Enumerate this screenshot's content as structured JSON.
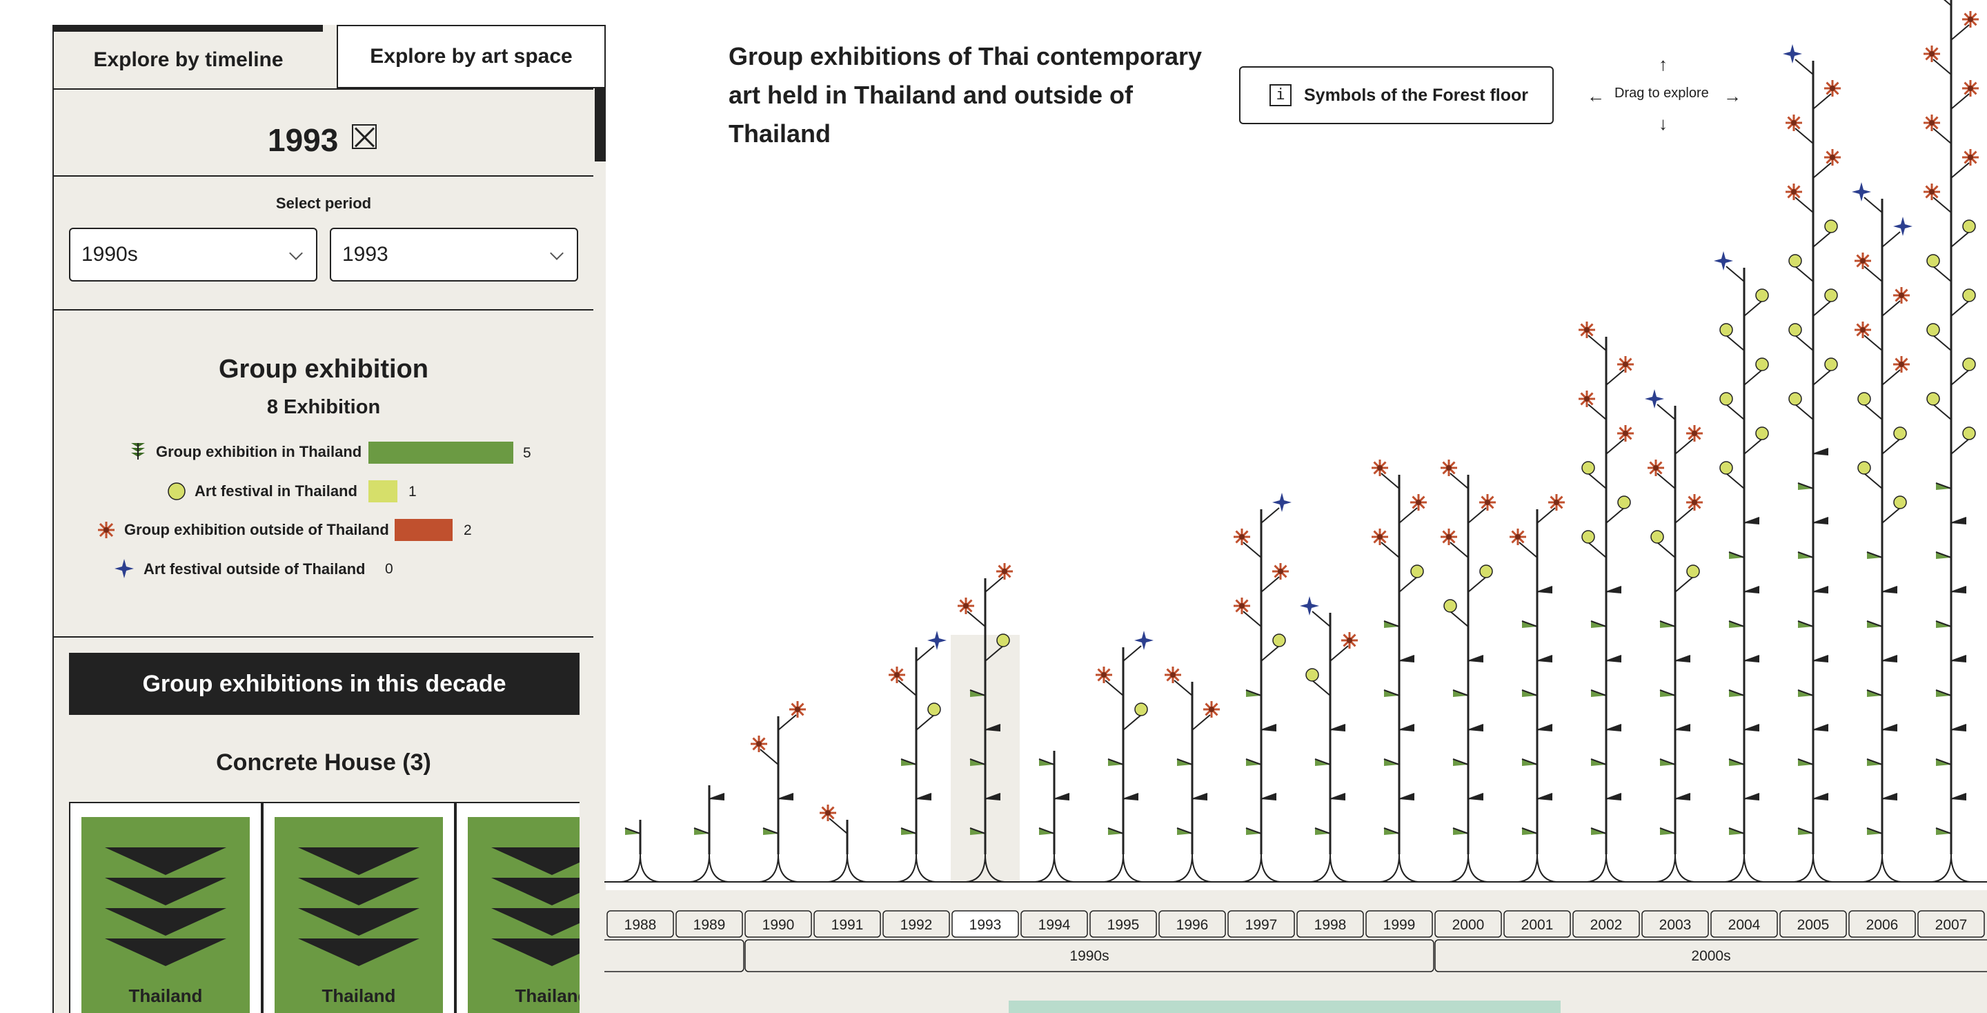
{
  "tabs": [
    {
      "label": "Explore by timeline",
      "active": true
    },
    {
      "label": "Explore by art space",
      "active": false
    }
  ],
  "selection": {
    "year": "1993"
  },
  "period": {
    "label": "Select period",
    "decade_value": "1990s",
    "year_value": "1993"
  },
  "summary": {
    "title": "Group exhibition",
    "count_label": "8 Exhibition",
    "items": [
      {
        "label": "Group exhibition in Thailand",
        "value": 5,
        "color": "#6b9a43",
        "icon": "fern-icon"
      },
      {
        "label": "Art festival in Thailand",
        "value": 1,
        "color": "#d6df6a",
        "icon": "circle-icon"
      },
      {
        "label": "Group exhibition outside of Thailand",
        "value": 2,
        "color": "#c0502e",
        "icon": "flower-icon"
      },
      {
        "label": "Art festival outside of Thailand",
        "value": 0,
        "color": "#2c3f8f",
        "icon": "star-icon"
      }
    ]
  },
  "decade_button": "Group exhibitions in this decade",
  "space": {
    "title": "Concrete House (3)",
    "cards": [
      {
        "label": "Thailand"
      },
      {
        "label": "Thailand"
      },
      {
        "label": "Thailand"
      }
    ]
  },
  "heading": "Group exhibitions of Thai contemporary art held in Thailand and outside of Thailand",
  "legend_button": {
    "icon": "i",
    "label": "Symbols of the Forest floor"
  },
  "drag_hint": "Drag to explore",
  "timeline": {
    "years": [
      "1988",
      "1989",
      "1990",
      "1991",
      "1992",
      "1993",
      "1994",
      "1995",
      "1996",
      "1997",
      "1998",
      "1999",
      "2000",
      "2001",
      "2002",
      "2003",
      "2004",
      "2005",
      "2006",
      "2007"
    ],
    "selected_year": "1993",
    "decades": [
      "1990s",
      "2000s"
    ]
  },
  "colors": {
    "green": "#6b9a43",
    "yellow": "#d6df6a",
    "red": "#c0502e",
    "blue": "#2c3f8f",
    "panel": "#efede7",
    "ink": "#1f1f1f"
  },
  "chart_data": {
    "type": "other",
    "series": [
      {
        "name": "Group exhibition in Thailand",
        "values": [
          1,
          2,
          2,
          0,
          3,
          5,
          3,
          3,
          3,
          5,
          4,
          7,
          6,
          8,
          8,
          7,
          10,
          12,
          9,
          11
        ]
      },
      {
        "name": "Art festival in Thailand",
        "values": [
          0,
          0,
          0,
          0,
          1,
          1,
          0,
          1,
          0,
          1,
          1,
          1,
          2,
          0,
          3,
          2,
          6,
          6,
          4,
          7
        ]
      },
      {
        "name": "Group exhibition outside of Thailand",
        "values": [
          0,
          0,
          2,
          1,
          1,
          2,
          0,
          1,
          2,
          3,
          1,
          3,
          3,
          2,
          4,
          3,
          0,
          4,
          4,
          6
        ]
      },
      {
        "name": "Art festival outside of Thailand",
        "values": [
          0,
          0,
          0,
          0,
          1,
          0,
          0,
          1,
          0,
          1,
          1,
          0,
          0,
          0,
          0,
          1,
          1,
          1,
          2,
          1
        ]
      }
    ]
  }
}
